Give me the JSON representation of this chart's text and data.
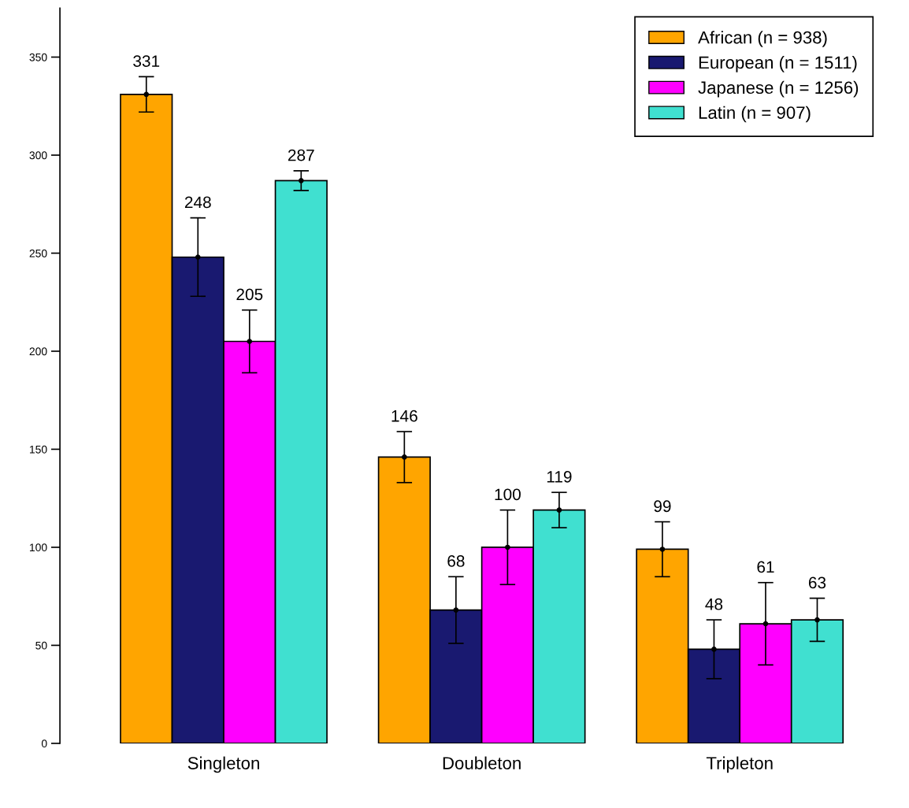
{
  "chart_data": {
    "type": "bar",
    "categories": [
      "Singleton",
      "Doubleton",
      "Tripleton"
    ],
    "series": [
      {
        "name": "African (n = 938)",
        "color": "#ffa500",
        "values": [
          331,
          146,
          99
        ],
        "errors": [
          [
            322,
            340
          ],
          [
            133,
            159
          ],
          [
            85,
            113
          ]
        ]
      },
      {
        "name": "European (n = 1511)",
        "color": "#191970",
        "values": [
          248,
          68,
          48
        ],
        "errors": [
          [
            228,
            268
          ],
          [
            51,
            85
          ],
          [
            33,
            63
          ]
        ]
      },
      {
        "name": "Japanese (n = 1256)",
        "color": "#ff00ff",
        "values": [
          205,
          100,
          61
        ],
        "errors": [
          [
            189,
            221
          ],
          [
            81,
            119
          ],
          [
            40,
            82
          ]
        ]
      },
      {
        "name": "Latin (n = 907)",
        "color": "#40e0d0",
        "values": [
          287,
          119,
          63
        ],
        "errors": [
          [
            282,
            292
          ],
          [
            110,
            128
          ],
          [
            52,
            74
          ]
        ]
      }
    ],
    "ylim": [
      0,
      375
    ],
    "yticks": [
      0,
      50,
      100,
      150,
      200,
      250,
      300,
      350
    ],
    "data_labels": true,
    "marker": "circle",
    "grid": false,
    "legend": "top right"
  }
}
